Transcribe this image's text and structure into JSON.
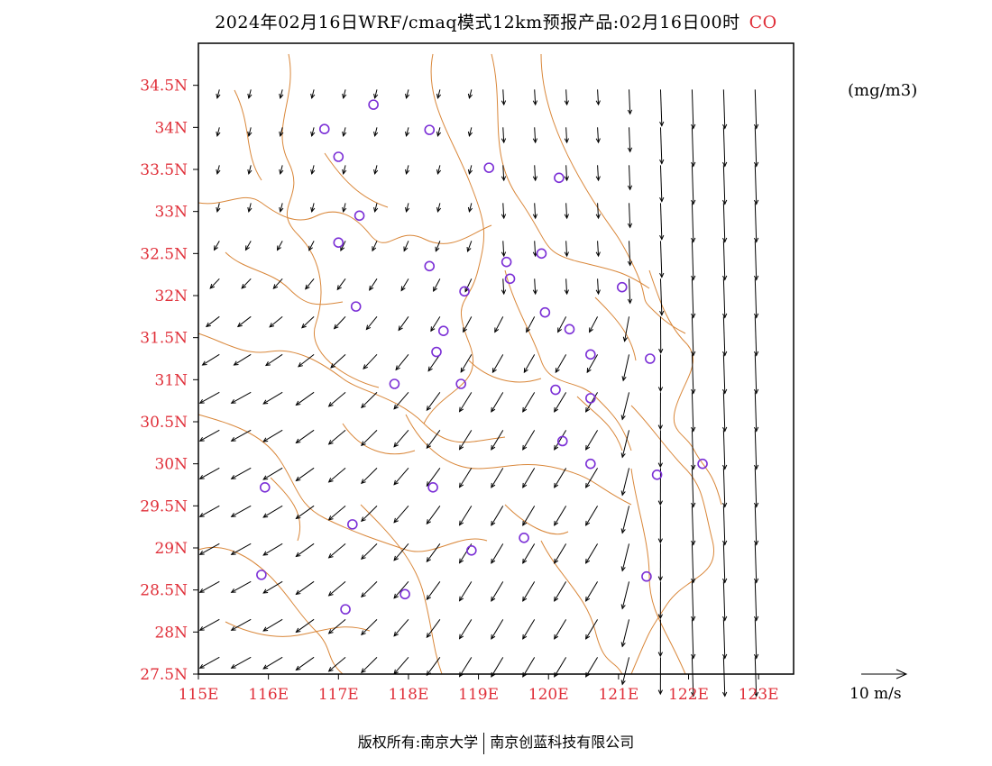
{
  "title": {
    "main": "2024年02月16日WRF/cmaq模式12km预报产品:02月16日00时",
    "pollutant": "CO"
  },
  "unit": "(mg/m3)",
  "footer": {
    "left": "版权所有:南京大学",
    "right": "南京创蓝科技有限公司"
  },
  "wind_reference": {
    "label": "10 m/s",
    "speed": 10
  },
  "colors": {
    "tick": "#e0303a",
    "border": "#d9873a",
    "station": "#7b2fd6",
    "frame": "#000000"
  },
  "map": {
    "lon_range": [
      115,
      123.5
    ],
    "lat_range": [
      27.5,
      35
    ],
    "lon_ticks": [
      "115E",
      "116E",
      "117E",
      "118E",
      "119E",
      "120E",
      "121E",
      "122E",
      "123E"
    ],
    "lat_ticks": [
      "27.5N",
      "28N",
      "28.5N",
      "29N",
      "29.5N",
      "30N",
      "30.5N",
      "31N",
      "31.5N",
      "32N",
      "32.5N",
      "33N",
      "33.5N",
      "34N",
      "34.5N"
    ],
    "stations": [
      {
        "lon": 117.5,
        "lat": 34.27
      },
      {
        "lon": 116.8,
        "lat": 33.98
      },
      {
        "lon": 118.3,
        "lat": 33.97
      },
      {
        "lon": 117.0,
        "lat": 33.65
      },
      {
        "lon": 119.15,
        "lat": 33.52
      },
      {
        "lon": 120.15,
        "lat": 33.4
      },
      {
        "lon": 117.3,
        "lat": 32.95
      },
      {
        "lon": 117.0,
        "lat": 32.63
      },
      {
        "lon": 119.9,
        "lat": 32.5
      },
      {
        "lon": 119.4,
        "lat": 32.4
      },
      {
        "lon": 118.3,
        "lat": 32.35
      },
      {
        "lon": 119.45,
        "lat": 32.2
      },
      {
        "lon": 121.05,
        "lat": 32.1
      },
      {
        "lon": 118.8,
        "lat": 32.05
      },
      {
        "lon": 117.25,
        "lat": 31.87
      },
      {
        "lon": 119.95,
        "lat": 31.8
      },
      {
        "lon": 120.3,
        "lat": 31.6
      },
      {
        "lon": 118.5,
        "lat": 31.58
      },
      {
        "lon": 118.4,
        "lat": 31.33
      },
      {
        "lon": 120.6,
        "lat": 31.3
      },
      {
        "lon": 121.45,
        "lat": 31.25
      },
      {
        "lon": 117.8,
        "lat": 30.95
      },
      {
        "lon": 118.75,
        "lat": 30.95
      },
      {
        "lon": 120.1,
        "lat": 30.88
      },
      {
        "lon": 120.6,
        "lat": 30.78
      },
      {
        "lon": 120.2,
        "lat": 30.27
      },
      {
        "lon": 120.6,
        "lat": 30.0
      },
      {
        "lon": 122.2,
        "lat": 30.0
      },
      {
        "lon": 121.55,
        "lat": 29.87
      },
      {
        "lon": 115.95,
        "lat": 29.72
      },
      {
        "lon": 118.35,
        "lat": 29.72
      },
      {
        "lon": 117.2,
        "lat": 29.28
      },
      {
        "lon": 119.65,
        "lat": 29.12
      },
      {
        "lon": 118.9,
        "lat": 28.97
      },
      {
        "lon": 115.9,
        "lat": 28.68
      },
      {
        "lon": 121.4,
        "lat": 28.66
      },
      {
        "lon": 117.95,
        "lat": 28.45
      },
      {
        "lon": 117.1,
        "lat": 28.27
      }
    ]
  }
}
